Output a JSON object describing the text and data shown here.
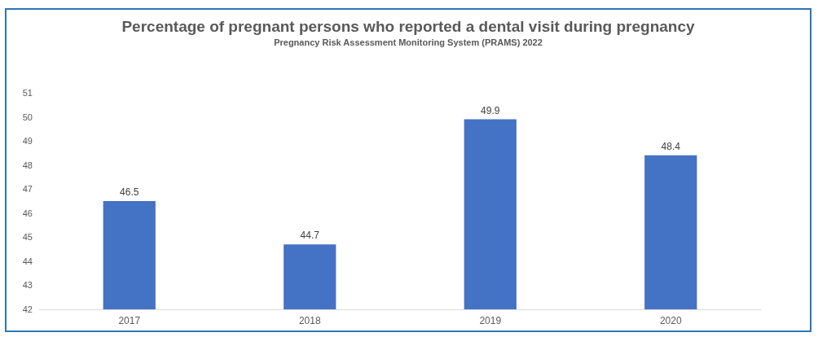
{
  "chart_data": {
    "type": "bar",
    "title": "Percentage of pregnant persons who reported a dental visit during pregnancy",
    "subtitle": "Pregnancy Risk Assessment Monitoring System (PRAMS) 2022",
    "categories": [
      "2017",
      "2018",
      "2019",
      "2020"
    ],
    "values": [
      46.5,
      44.7,
      49.9,
      48.4
    ],
    "color": "#4472c4",
    "ylim": [
      42,
      51
    ],
    "yticks": [
      42,
      43,
      44,
      45,
      46,
      47,
      48,
      49,
      50,
      51
    ],
    "grid": false,
    "data_labels": true
  }
}
